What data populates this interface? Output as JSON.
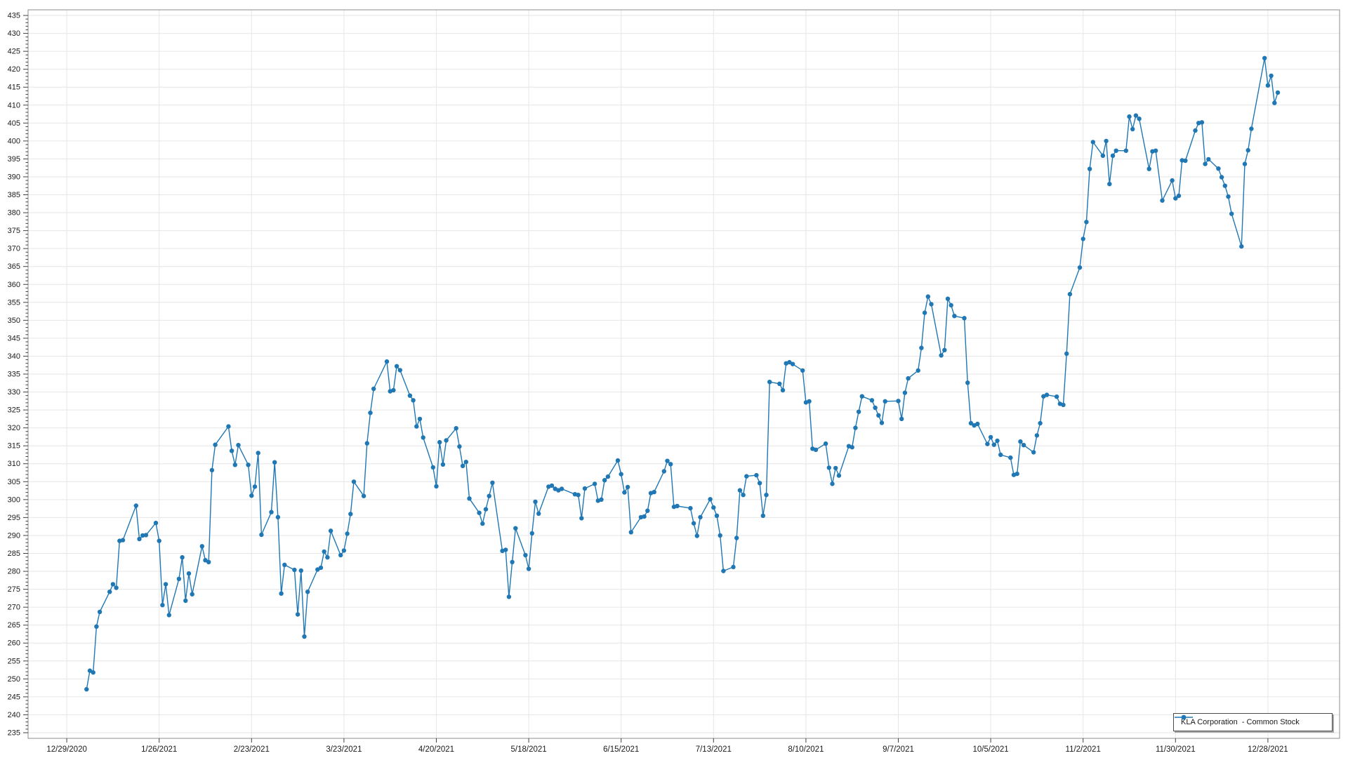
{
  "chart_data": {
    "type": "line",
    "title": "",
    "legend_label": "KLA Corporation  - Common Stock",
    "legend_position": "bottom-right",
    "grid": true,
    "x_axis": {
      "epoch_date": "2020-12-29",
      "tick_interval_days": 28,
      "tick_labels": [
        "12/29/2020",
        "1/26/2021",
        "2/23/2021",
        "3/23/2021",
        "4/20/2021",
        "5/18/2021",
        "6/15/2021",
        "7/13/2021",
        "8/10/2021",
        "9/7/2021",
        "10/5/2021",
        "11/2/2021",
        "11/30/2021",
        "12/28/2021"
      ]
    },
    "y_axis": {
      "tick_min": 235,
      "tick_max": 435,
      "tick_step": 5,
      "ylim": [
        233.4,
        436.6
      ],
      "tick_labels": [
        "435",
        "430",
        "425",
        "420",
        "415",
        "410",
        "405",
        "400",
        "395",
        "390",
        "385",
        "380",
        "375",
        "370",
        "365",
        "360",
        "355",
        "350",
        "345",
        "340",
        "335",
        "330",
        "325",
        "320",
        "315",
        "310",
        "305",
        "300",
        "295",
        "290",
        "285",
        "280",
        "275",
        "270",
        "265",
        "260",
        "255",
        "250",
        "245",
        "240",
        "235"
      ]
    },
    "series": [
      {
        "name": "KLA Corporation  - Common Stock",
        "dates": [
          "2021-01-04",
          "2021-01-05",
          "2021-01-06",
          "2021-01-07",
          "2021-01-08",
          "2021-01-11",
          "2021-01-12",
          "2021-01-13",
          "2021-01-14",
          "2021-01-15",
          "2021-01-19",
          "2021-01-20",
          "2021-01-21",
          "2021-01-22",
          "2021-01-25",
          "2021-01-26",
          "2021-01-27",
          "2021-01-28",
          "2021-01-29",
          "2021-02-01",
          "2021-02-02",
          "2021-02-03",
          "2021-02-04",
          "2021-02-05",
          "2021-02-08",
          "2021-02-09",
          "2021-02-10",
          "2021-02-11",
          "2021-02-12",
          "2021-02-16",
          "2021-02-17",
          "2021-02-18",
          "2021-02-19",
          "2021-02-22",
          "2021-02-23",
          "2021-02-24",
          "2021-02-25",
          "2021-02-26",
          "2021-03-01",
          "2021-03-02",
          "2021-03-03",
          "2021-03-04",
          "2021-03-05",
          "2021-03-08",
          "2021-03-09",
          "2021-03-10",
          "2021-03-11",
          "2021-03-12",
          "2021-03-15",
          "2021-03-16",
          "2021-03-17",
          "2021-03-18",
          "2021-03-19",
          "2021-03-22",
          "2021-03-23",
          "2021-03-24",
          "2021-03-25",
          "2021-03-26",
          "2021-03-29",
          "2021-03-30",
          "2021-03-31",
          "2021-04-01",
          "2021-04-05",
          "2021-04-06",
          "2021-04-07",
          "2021-04-08",
          "2021-04-09",
          "2021-04-12",
          "2021-04-13",
          "2021-04-14",
          "2021-04-15",
          "2021-04-16",
          "2021-04-19",
          "2021-04-20",
          "2021-04-21",
          "2021-04-22",
          "2021-04-23",
          "2021-04-26",
          "2021-04-27",
          "2021-04-28",
          "2021-04-29",
          "2021-04-30",
          "2021-05-03",
          "2021-05-04",
          "2021-05-05",
          "2021-05-06",
          "2021-05-07",
          "2021-05-10",
          "2021-05-11",
          "2021-05-12",
          "2021-05-13",
          "2021-05-14",
          "2021-05-17",
          "2021-05-18",
          "2021-05-19",
          "2021-05-20",
          "2021-05-21",
          "2021-05-24",
          "2021-05-25",
          "2021-05-26",
          "2021-05-27",
          "2021-05-28",
          "2021-06-01",
          "2021-06-02",
          "2021-06-03",
          "2021-06-04",
          "2021-06-07",
          "2021-06-08",
          "2021-06-09",
          "2021-06-10",
          "2021-06-11",
          "2021-06-14",
          "2021-06-15",
          "2021-06-16",
          "2021-06-17",
          "2021-06-18",
          "2021-06-21",
          "2021-06-22",
          "2021-06-23",
          "2021-06-24",
          "2021-06-25",
          "2021-06-28",
          "2021-06-29",
          "2021-06-30",
          "2021-07-01",
          "2021-07-02",
          "2021-07-06",
          "2021-07-07",
          "2021-07-08",
          "2021-07-09",
          "2021-07-12",
          "2021-07-13",
          "2021-07-14",
          "2021-07-15",
          "2021-07-16",
          "2021-07-19",
          "2021-07-20",
          "2021-07-21",
          "2021-07-22",
          "2021-07-23",
          "2021-07-26",
          "2021-07-27",
          "2021-07-28",
          "2021-07-29",
          "2021-07-30",
          "2021-08-02",
          "2021-08-03",
          "2021-08-04",
          "2021-08-05",
          "2021-08-06",
          "2021-08-09",
          "2021-08-10",
          "2021-08-11",
          "2021-08-12",
          "2021-08-13",
          "2021-08-16",
          "2021-08-17",
          "2021-08-18",
          "2021-08-19",
          "2021-08-20",
          "2021-08-23",
          "2021-08-24",
          "2021-08-25",
          "2021-08-26",
          "2021-08-27",
          "2021-08-30",
          "2021-08-31",
          "2021-09-01",
          "2021-09-02",
          "2021-09-03",
          "2021-09-07",
          "2021-09-08",
          "2021-09-09",
          "2021-09-10",
          "2021-09-13",
          "2021-09-14",
          "2021-09-15",
          "2021-09-16",
          "2021-09-17",
          "2021-09-20",
          "2021-09-21",
          "2021-09-22",
          "2021-09-23",
          "2021-09-24",
          "2021-09-27",
          "2021-09-28",
          "2021-09-29",
          "2021-09-30",
          "2021-10-01",
          "2021-10-04",
          "2021-10-05",
          "2021-10-06",
          "2021-10-07",
          "2021-10-08",
          "2021-10-11",
          "2021-10-12",
          "2021-10-13",
          "2021-10-14",
          "2021-10-15",
          "2021-10-18",
          "2021-10-19",
          "2021-10-20",
          "2021-10-21",
          "2021-10-22",
          "2021-10-25",
          "2021-10-26",
          "2021-10-27",
          "2021-10-28",
          "2021-10-29",
          "2021-11-01",
          "2021-11-02",
          "2021-11-03",
          "2021-11-04",
          "2021-11-05",
          "2021-11-08",
          "2021-11-09",
          "2021-11-10",
          "2021-11-11",
          "2021-11-12",
          "2021-11-15",
          "2021-11-16",
          "2021-11-17",
          "2021-11-18",
          "2021-11-19",
          "2021-11-22",
          "2021-11-23",
          "2021-11-24",
          "2021-11-26",
          "2021-11-29",
          "2021-11-30",
          "2021-12-01",
          "2021-12-02",
          "2021-12-03",
          "2021-12-06",
          "2021-12-07",
          "2021-12-08",
          "2021-12-09",
          "2021-12-10",
          "2021-12-13",
          "2021-12-14",
          "2021-12-15",
          "2021-12-16",
          "2021-12-17",
          "2021-12-20",
          "2021-12-21",
          "2021-12-22",
          "2021-12-23",
          "2021-12-27",
          "2021-12-28",
          "2021-12-29",
          "2021-12-30",
          "2021-12-31"
        ],
        "values": [
          247.1,
          252.3,
          251.8,
          264.6,
          268.7,
          274.3,
          276.4,
          275.4,
          288.5,
          288.7,
          298.3,
          289.0,
          290.0,
          290.1,
          293.5,
          288.5,
          270.6,
          276.4,
          267.8,
          277.9,
          283.9,
          271.8,
          279.4,
          273.6,
          287.0,
          283.1,
          282.6,
          308.2,
          315.3,
          320.4,
          313.6,
          309.7,
          315.2,
          309.7,
          301.1,
          303.6,
          313.0,
          290.2,
          296.5,
          310.4,
          295.1,
          273.8,
          281.8,
          280.4,
          268.0,
          280.2,
          261.8,
          274.3,
          280.5,
          281.0,
          285.5,
          283.9,
          291.3,
          284.5,
          285.8,
          290.5,
          296.0,
          305.0,
          301.0,
          315.7,
          324.2,
          330.9,
          338.5,
          330.2,
          330.5,
          337.2,
          336.1,
          329.0,
          327.7,
          320.4,
          322.5,
          317.3,
          309.0,
          303.7,
          316.0,
          309.8,
          316.5,
          319.9,
          314.8,
          309.4,
          310.5,
          300.3,
          296.3,
          293.3,
          297.3,
          301.0,
          304.7,
          285.7,
          286.0,
          272.9,
          282.6,
          292.0,
          284.5,
          280.7,
          290.6,
          299.4,
          296.1,
          303.6,
          303.9,
          303.0,
          302.6,
          303.0,
          301.5,
          301.3,
          294.8,
          303.1,
          304.4,
          299.7,
          300.0,
          305.4,
          306.4,
          310.9,
          307.1,
          302.0,
          303.5,
          290.9,
          295.1,
          295.3,
          296.9,
          301.8,
          302.1,
          307.9,
          310.8,
          309.9,
          298.0,
          298.2,
          297.6,
          293.4,
          289.9,
          295.1,
          300.1,
          297.8,
          295.5,
          290.0,
          280.1,
          281.2,
          289.3,
          302.6,
          301.3,
          306.5,
          306.8,
          304.6,
          295.5,
          301.3,
          332.8,
          332.3,
          330.5,
          338.0,
          338.3,
          337.8,
          336.0,
          327.1,
          327.4,
          314.2,
          313.9,
          315.6,
          308.9,
          304.4,
          308.8,
          306.7,
          314.9,
          314.6,
          320.0,
          324.5,
          328.8,
          327.7,
          325.6,
          323.5,
          321.4,
          327.4,
          327.5,
          322.5,
          329.8,
          333.8,
          336.0,
          342.3,
          352.1,
          356.6,
          354.5,
          340.2,
          341.7,
          356.0,
          354.2,
          351.2,
          350.6,
          332.6,
          321.3,
          320.7,
          321.1,
          315.5,
          317.4,
          315.3,
          316.4,
          312.5,
          311.7,
          306.9,
          307.2,
          316.2,
          315.2,
          313.2,
          317.9,
          321.3,
          328.8,
          329.2,
          328.7,
          326.7,
          326.4,
          340.7,
          357.3,
          364.7,
          372.7,
          377.4,
          392.2,
          399.7,
          395.9,
          400.0,
          388.0,
          395.9,
          397.3,
          397.3,
          406.8,
          403.3,
          407.1,
          406.2,
          392.2,
          397.1,
          397.3,
          383.4,
          389.0,
          384.0,
          384.7,
          394.6,
          394.5,
          402.9,
          405.0,
          405.2,
          393.6,
          394.9,
          392.3,
          389.9,
          387.5,
          384.5,
          379.7,
          370.6,
          393.6,
          397.4,
          403.4,
          423.1,
          415.5,
          418.2,
          410.6,
          413.5
        ]
      }
    ],
    "colors": {
      "line": "#1f77b4",
      "marker": "#1f77b4",
      "grid": "#e6e6e6",
      "plot_border": "#8c8c8c",
      "tick": "#404040",
      "label": "#1a1a1a",
      "background": "#ffffff"
    }
  }
}
